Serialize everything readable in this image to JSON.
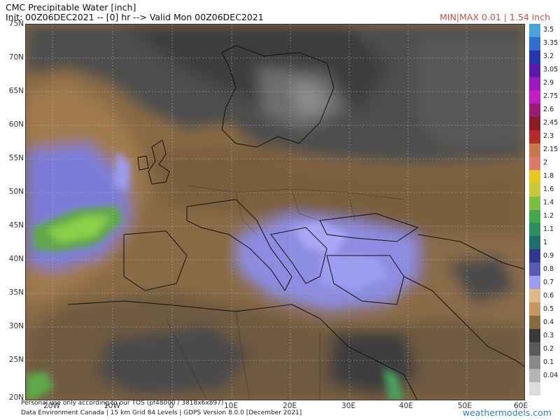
{
  "header": {
    "title": "CMC Precipitable Water [inch]",
    "subtitle": "Init: 00Z06DEC2021 -- [0] hr --> Valid Mon 00Z06DEC2021",
    "minmax": "MIN|MAX 0.01 | 1.54 inch"
  },
  "map": {
    "lat_labels": [
      "75N",
      "70N",
      "65N",
      "60N",
      "55N",
      "50N",
      "45N",
      "40N",
      "35N",
      "30N",
      "25N",
      "20N"
    ],
    "lon_labels": [
      "20W",
      "10W",
      "0",
      "10E",
      "20E",
      "30E",
      "40E",
      "50E",
      "60E"
    ]
  },
  "colorbar": {
    "levels": [
      {
        "label": "3.5",
        "color": "#4aa3df"
      },
      {
        "label": "3.35",
        "color": "#2f6fd0"
      },
      {
        "label": "3.2",
        "color": "#2536b8"
      },
      {
        "label": "3.05",
        "color": "#5a18b0"
      },
      {
        "label": "2.9",
        "color": "#9a18c0"
      },
      {
        "label": "2.75",
        "color": "#c41cc4"
      },
      {
        "label": "2.6",
        "color": "#9a1c78"
      },
      {
        "label": "2.45",
        "color": "#8c1a28"
      },
      {
        "label": "2.3",
        "color": "#b82a2a"
      },
      {
        "label": "2.15",
        "color": "#c8784a"
      },
      {
        "label": "2",
        "color": "#e07868"
      },
      {
        "label": "1.8",
        "color": "#e8c820"
      },
      {
        "label": "1.6",
        "color": "#c8c83c"
      },
      {
        "label": "1.4",
        "color": "#78c040"
      },
      {
        "label": "1.2",
        "color": "#48a848"
      },
      {
        "label": "1.1",
        "color": "#2e8e5e"
      },
      {
        "label": "1",
        "color": "#1e6e6e"
      },
      {
        "label": "0.9",
        "color": "#303890"
      },
      {
        "label": "0.8",
        "color": "#5a5ab8"
      },
      {
        "label": "0.7",
        "color": "#9c9cf0"
      },
      {
        "label": "0.6",
        "color": "#e0b88a"
      },
      {
        "label": "0.5",
        "color": "#c8965e"
      },
      {
        "label": "0.4",
        "color": "#8c6a40"
      },
      {
        "label": "0.3",
        "color": "#3a3a3a"
      },
      {
        "label": "0.2",
        "color": "#5a5a5a"
      },
      {
        "label": "0.1",
        "color": "#8a8a8a"
      },
      {
        "label": "0.04",
        "color": "#b4b4b4"
      },
      {
        "label": "",
        "color": "#dcdcdc"
      }
    ]
  },
  "footer": {
    "line1": "Personal use only according to our TOS (pf48000 / 3818x6x897)",
    "line2": "Data Environment Canada | 15 km Grid 84 Levels | GDPS Version 8.0.0 [December 2021]",
    "brand": "weathermodels.com"
  }
}
